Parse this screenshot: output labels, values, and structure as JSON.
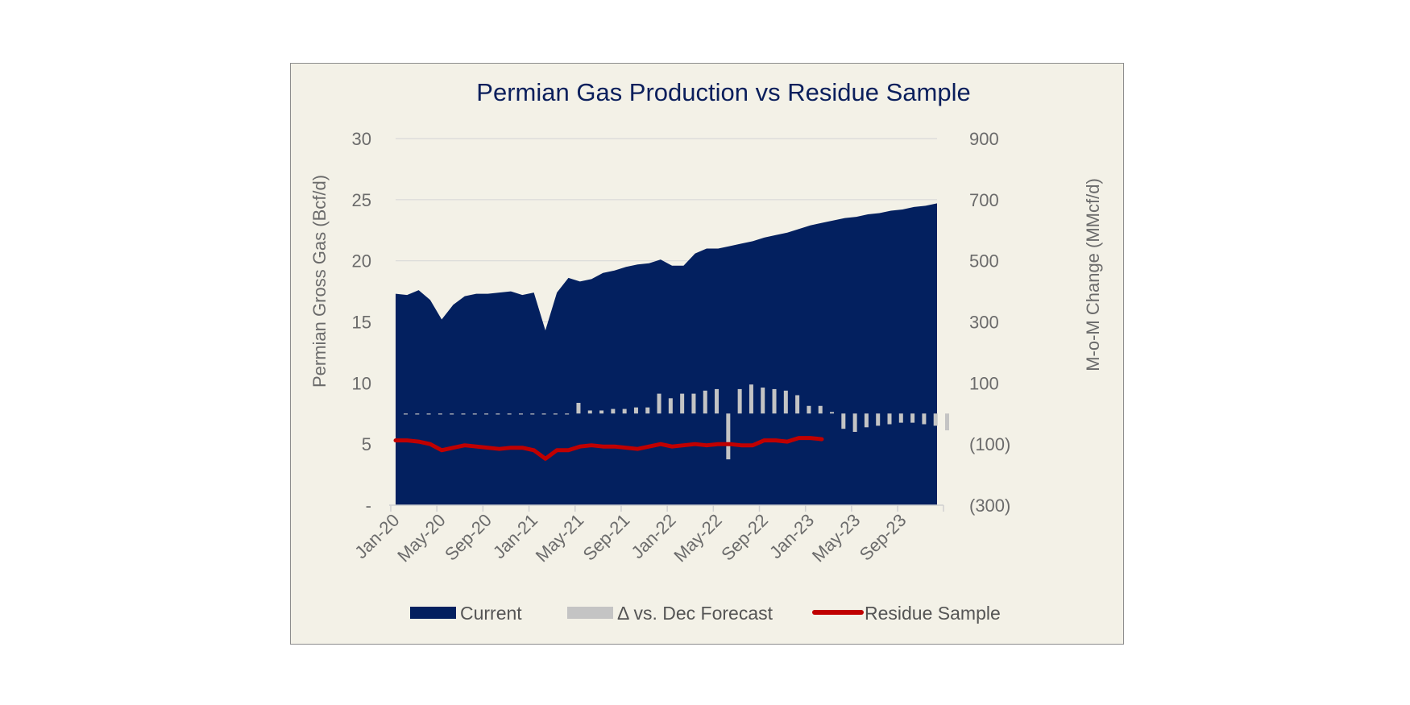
{
  "chart_data": {
    "type": "area",
    "title": "Permian Gas Production vs Residue Sample",
    "ylabel_left": "Permian Gross Gas (Bcf/d)",
    "ylabel_right": "M-o-M Change (MMcf/d)",
    "ylim_left": [
      0,
      30
    ],
    "ylim_right": [
      -300,
      900
    ],
    "yticks_left": [
      "-",
      "5",
      "10",
      "15",
      "20",
      "25",
      "30"
    ],
    "yticks_right": [
      "(300)",
      "(100)",
      "100",
      "300",
      "500",
      "700",
      "900"
    ],
    "x_tick_labels": [
      "Jan-20",
      "May-20",
      "Sep-20",
      "Jan-21",
      "May-21",
      "Sep-21",
      "Jan-22",
      "May-22",
      "Sep-22",
      "Jan-23",
      "May-23",
      "Sep-23"
    ],
    "x_categories": [
      "Jan-20",
      "Feb-20",
      "Mar-20",
      "Apr-20",
      "May-20",
      "Jun-20",
      "Jul-20",
      "Aug-20",
      "Sep-20",
      "Oct-20",
      "Nov-20",
      "Dec-20",
      "Jan-21",
      "Feb-21",
      "Mar-21",
      "Apr-21",
      "May-21",
      "Jun-21",
      "Jul-21",
      "Aug-21",
      "Sep-21",
      "Oct-21",
      "Nov-21",
      "Dec-21",
      "Jan-22",
      "Feb-22",
      "Mar-22",
      "Apr-22",
      "May-22",
      "Jun-22",
      "Jul-22",
      "Aug-22",
      "Sep-22",
      "Oct-22",
      "Nov-22",
      "Dec-22",
      "Jan-23",
      "Feb-23",
      "Mar-23",
      "Apr-23",
      "May-23",
      "Jun-23",
      "Jul-23",
      "Aug-23",
      "Sep-23",
      "Oct-23",
      "Nov-23",
      "Dec-23"
    ],
    "grid": true,
    "legend_position": "bottom",
    "series": [
      {
        "name": "Current",
        "type": "area",
        "axis": "left",
        "color": "#03205f",
        "values": [
          17.3,
          17.2,
          17.6,
          16.8,
          15.2,
          16.4,
          17.1,
          17.3,
          17.3,
          17.4,
          17.5,
          17.2,
          17.4,
          14.3,
          17.4,
          18.6,
          18.3,
          18.5,
          19.0,
          19.2,
          19.5,
          19.7,
          19.8,
          20.1,
          19.6,
          19.6,
          20.6,
          21.0,
          21.0,
          21.2,
          21.4,
          21.6,
          21.9,
          22.1,
          22.3,
          22.6,
          22.9,
          23.1,
          23.3,
          23.5,
          23.6,
          23.8,
          23.9,
          24.1,
          24.2,
          24.4,
          24.5,
          24.7
        ]
      },
      {
        "name": "Δ vs. Dec Forecast",
        "type": "bar",
        "axis": "right",
        "color": "#c4c4c4",
        "values": [
          -3,
          -3,
          -3,
          -3,
          -3,
          -3,
          -3,
          -3,
          -3,
          -3,
          -3,
          -3,
          -3,
          -3,
          -3,
          35,
          10,
          10,
          15,
          15,
          20,
          20,
          65,
          50,
          65,
          65,
          75,
          80,
          -150,
          80,
          95,
          85,
          80,
          75,
          60,
          25,
          25,
          5,
          -50,
          -60,
          -45,
          -40,
          -35,
          -30,
          -30,
          -35,
          -40,
          -55
        ]
      },
      {
        "name": "Residue Sample",
        "type": "line",
        "axis": "left",
        "color": "#c00000",
        "values": [
          5.3,
          5.3,
          5.2,
          5.0,
          4.5,
          4.7,
          4.9,
          4.8,
          4.7,
          4.6,
          4.7,
          4.7,
          4.5,
          3.8,
          4.5,
          4.5,
          4.8,
          4.9,
          4.8,
          4.8,
          4.7,
          4.6,
          4.8,
          5.0,
          4.8,
          4.9,
          5.0,
          4.9,
          5.0,
          5.0,
          4.9,
          4.9,
          5.3,
          5.3,
          5.2,
          5.5,
          5.5,
          5.4
        ]
      }
    ]
  }
}
